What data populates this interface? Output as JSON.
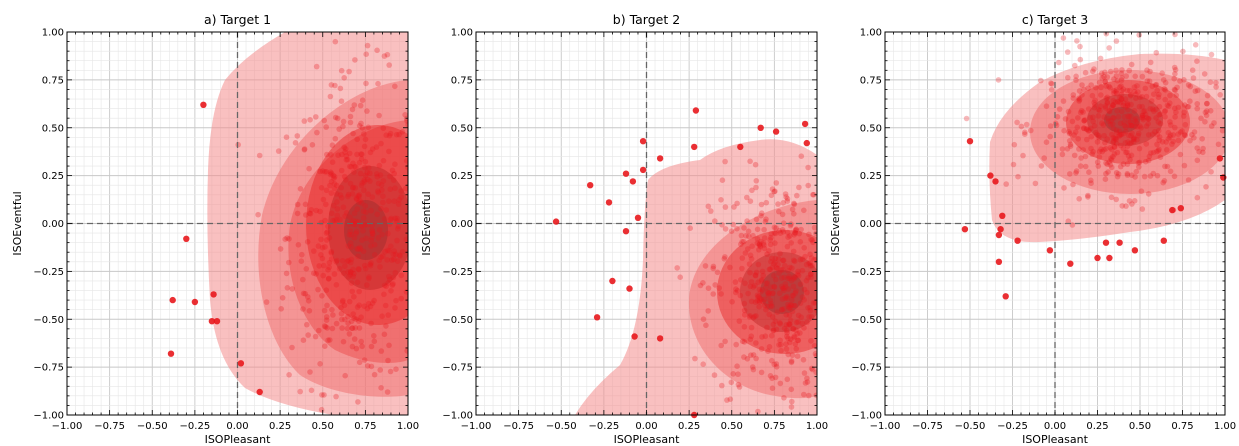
{
  "chart_data": [
    {
      "type": "scatter",
      "title": "a) Target 1",
      "xlabel": "ISOPleasant",
      "ylabel": "ISOEventful",
      "xlim": [
        -1,
        1
      ],
      "ylim": [
        -1,
        1
      ],
      "xticks": [
        "−1.00",
        "−0.75",
        "−0.50",
        "−0.25",
        "0.00",
        "0.25",
        "0.50",
        "0.75",
        "1.00"
      ],
      "yticks": [
        "−1.00",
        "−0.75",
        "−0.50",
        "−0.25",
        "0.00",
        "0.25",
        "0.50",
        "0.75",
        "1.00"
      ],
      "grid": true,
      "point_color": "#e8181d",
      "density_center": [
        0.7,
        -0.05
      ],
      "points_spread": [
        0.2,
        0.4
      ],
      "outliers": [
        {
          "x": -0.2,
          "y": 0.62
        },
        {
          "x": -0.3,
          "y": -0.08
        },
        {
          "x": -0.38,
          "y": -0.4
        },
        {
          "x": -0.25,
          "y": -0.41
        },
        {
          "x": -0.15,
          "y": -0.51
        },
        {
          "x": -0.12,
          "y": -0.51
        },
        {
          "x": -0.39,
          "y": -0.68
        },
        {
          "x": 0.02,
          "y": -0.73
        },
        {
          "x": 0.13,
          "y": -0.88
        },
        {
          "x": -0.14,
          "y": -0.37
        }
      ]
    },
    {
      "type": "scatter",
      "title": "b) Target 2",
      "xlabel": "ISOPleasant",
      "ylabel": "ISOEventful",
      "xlim": [
        -1,
        1
      ],
      "ylim": [
        -1,
        1
      ],
      "xticks": [
        "−1.00",
        "−0.75",
        "−0.50",
        "−0.25",
        "0.00",
        "0.25",
        "0.50",
        "0.75",
        "1.00"
      ],
      "yticks": [
        "−1.00",
        "−0.75",
        "−0.50",
        "−0.25",
        "0.00",
        "0.25",
        "0.50",
        "0.75",
        "1.00"
      ],
      "grid": true,
      "point_color": "#e8181d",
      "density_center": [
        0.78,
        -0.35
      ],
      "points_spread": [
        0.2,
        0.3
      ],
      "outliers": [
        {
          "x": 0.29,
          "y": 0.59
        },
        {
          "x": 0.93,
          "y": 0.52
        },
        {
          "x": 0.67,
          "y": 0.5
        },
        {
          "x": 0.76,
          "y": 0.48
        },
        {
          "x": 0.94,
          "y": 0.42
        },
        {
          "x": -0.02,
          "y": 0.43
        },
        {
          "x": 0.28,
          "y": 0.4
        },
        {
          "x": 0.08,
          "y": 0.34
        },
        {
          "x": -0.02,
          "y": 0.28
        },
        {
          "x": -0.12,
          "y": 0.26
        },
        {
          "x": -0.08,
          "y": 0.22
        },
        {
          "x": -0.33,
          "y": 0.2
        },
        {
          "x": -0.22,
          "y": 0.11
        },
        {
          "x": -0.53,
          "y": 0.01
        },
        {
          "x": -0.05,
          "y": 0.03
        },
        {
          "x": -0.12,
          "y": -0.04
        },
        {
          "x": -0.2,
          "y": -0.3
        },
        {
          "x": -0.1,
          "y": -0.34
        },
        {
          "x": -0.29,
          "y": -0.49
        },
        {
          "x": -0.07,
          "y": -0.59
        },
        {
          "x": 0.08,
          "y": -0.6
        },
        {
          "x": 0.28,
          "y": -1.0
        },
        {
          "x": 0.55,
          "y": 0.4
        }
      ]
    },
    {
      "type": "scatter",
      "title": "c) Target 3",
      "xlabel": "ISOPleasant",
      "ylabel": "ISOEventful",
      "xlim": [
        -1,
        1
      ],
      "ylim": [
        -1,
        1
      ],
      "xticks": [
        "−1.00",
        "−0.75",
        "−0.50",
        "−0.25",
        "0.00",
        "0.25",
        "0.50",
        "0.75",
        "1.00"
      ],
      "yticks": [
        "−1.00",
        "−0.75",
        "−0.50",
        "−0.25",
        "0.00",
        "0.25",
        "0.50",
        "0.75",
        "1.00"
      ],
      "grid": true,
      "point_color": "#e8181d",
      "density_center": [
        0.42,
        0.52
      ],
      "points_spread": [
        0.25,
        0.18
      ],
      "outliers": [
        {
          "x": -0.5,
          "y": 0.43
        },
        {
          "x": -0.38,
          "y": 0.25
        },
        {
          "x": -0.35,
          "y": 0.22
        },
        {
          "x": -0.31,
          "y": 0.04
        },
        {
          "x": -0.32,
          "y": -0.03
        },
        {
          "x": -0.33,
          "y": -0.06
        },
        {
          "x": -0.53,
          "y": -0.03
        },
        {
          "x": -0.22,
          "y": -0.09
        },
        {
          "x": -0.33,
          "y": -0.2
        },
        {
          "x": -0.29,
          "y": -0.38
        },
        {
          "x": -0.03,
          "y": -0.14
        },
        {
          "x": 0.09,
          "y": -0.21
        },
        {
          "x": 0.25,
          "y": -0.18
        },
        {
          "x": 0.32,
          "y": -0.18
        },
        {
          "x": 0.47,
          "y": -0.14
        },
        {
          "x": 0.64,
          "y": -0.09
        },
        {
          "x": 0.69,
          "y": 0.07
        },
        {
          "x": 0.74,
          "y": 0.08
        },
        {
          "x": 0.99,
          "y": 0.24
        },
        {
          "x": 0.97,
          "y": 0.34
        },
        {
          "x": 0.3,
          "y": -0.1
        },
        {
          "x": 0.38,
          "y": -0.1
        }
      ]
    }
  ]
}
